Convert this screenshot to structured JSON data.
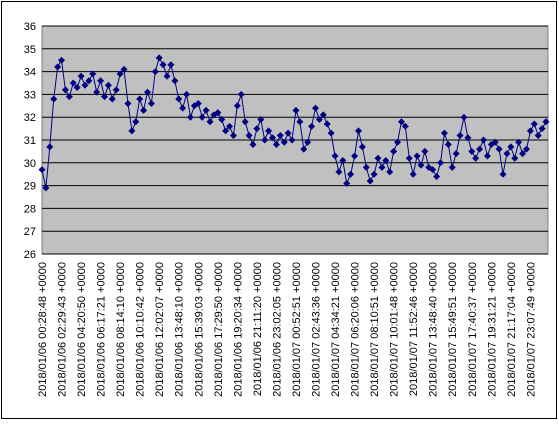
{
  "chart_data": {
    "type": "line",
    "categories": [
      "2018/01/06 00:28:48 +0000",
      null,
      null,
      null,
      null,
      "2018/01/06 02:29:43 +0000",
      null,
      null,
      null,
      null,
      "2018/01/06 04:20:50 +0000",
      null,
      null,
      null,
      null,
      "2018/01/06 06:17:21 +0000",
      null,
      null,
      null,
      null,
      "2018/01/06 08:14:10 +0000",
      null,
      null,
      null,
      null,
      "2018/01/06 10:10:42 +0000",
      null,
      null,
      null,
      null,
      "2018/01/06 12:02:07 +0000",
      null,
      null,
      null,
      null,
      "2018/01/06 13:48:10 +0000",
      null,
      null,
      null,
      null,
      "2018/01/06 15:39:03 +0000",
      null,
      null,
      null,
      null,
      "2018/01/06 17:29:50 +0000",
      null,
      null,
      null,
      null,
      "2018/01/06 19:20:34 +0000",
      null,
      null,
      null,
      null,
      "2018/01/06 21:11:20 +0000",
      null,
      null,
      null,
      null,
      "2018/01/06 23:02:05 +0000",
      null,
      null,
      null,
      null,
      "2018/01/07 00:52:51 +0000",
      null,
      null,
      null,
      null,
      "2018/01/07 02:43:36 +0000",
      null,
      null,
      null,
      null,
      "2018/01/07 04:34:21 +0000",
      null,
      null,
      null,
      null,
      "2018/01/07 06:20:06 +0000",
      null,
      null,
      null,
      null,
      "2018/01/07 08:10:51 +0000",
      null,
      null,
      null,
      null,
      "2018/01/07 10:01:48 +0000",
      null,
      null,
      null,
      null,
      "2018/01/07 11:52:46 +0000",
      null,
      null,
      null,
      null,
      "2018/01/07 13:48:40 +0000",
      null,
      null,
      null,
      null,
      "2018/01/07 15:49:51 +0000",
      null,
      null,
      null,
      null,
      "2018/01/07 17:40:37 +0000",
      null,
      null,
      null,
      null,
      "2018/01/07 19:31:21 +0000",
      null,
      null,
      null,
      null,
      "2018/01/07 21:17:04 +0000",
      null,
      null,
      null,
      null,
      "2018/01/07 23:07:49 +0000",
      null,
      null,
      null,
      null
    ],
    "values": [
      29.7,
      28.9,
      30.7,
      32.8,
      34.2,
      34.5,
      33.2,
      32.9,
      33.5,
      33.3,
      33.8,
      33.4,
      33.6,
      33.9,
      33.1,
      33.6,
      32.9,
      33.4,
      32.8,
      33.2,
      33.9,
      34.1,
      32.6,
      31.4,
      31.8,
      32.8,
      32.3,
      33.1,
      32.6,
      34.0,
      34.6,
      34.3,
      33.8,
      34.3,
      33.6,
      32.8,
      32.4,
      33.0,
      32.0,
      32.5,
      32.6,
      32.0,
      32.3,
      31.8,
      32.1,
      32.2,
      31.9,
      31.4,
      31.6,
      31.2,
      32.5,
      33.0,
      31.8,
      31.2,
      30.8,
      31.5,
      31.9,
      31.0,
      31.4,
      31.1,
      30.8,
      31.2,
      30.9,
      31.3,
      31.0,
      32.3,
      31.8,
      30.6,
      30.9,
      31.6,
      32.4,
      31.9,
      32.1,
      31.7,
      31.3,
      30.3,
      29.6,
      30.1,
      29.1,
      29.5,
      30.3,
      31.4,
      30.7,
      29.8,
      29.2,
      29.5,
      30.2,
      29.8,
      30.1,
      29.6,
      30.5,
      30.9,
      31.8,
      31.6,
      30.2,
      29.5,
      30.3,
      29.9,
      30.5,
      29.8,
      29.7,
      29.4,
      30.0,
      31.3,
      30.8,
      29.8,
      30.4,
      31.2,
      32.0,
      31.1,
      30.5,
      30.2,
      30.6,
      31.0,
      30.3,
      30.8,
      30.9,
      30.6,
      29.5,
      30.4,
      30.7,
      30.2,
      30.9,
      30.4,
      30.6,
      31.4,
      31.7,
      31.2,
      31.5,
      31.8
    ],
    "color": "#000080",
    "plot_background": "#c0c0c0",
    "ylim": [
      26,
      36
    ],
    "yticks": [
      26,
      27,
      28,
      29,
      30,
      31,
      32,
      33,
      34,
      35,
      36
    ],
    "grid": true
  }
}
